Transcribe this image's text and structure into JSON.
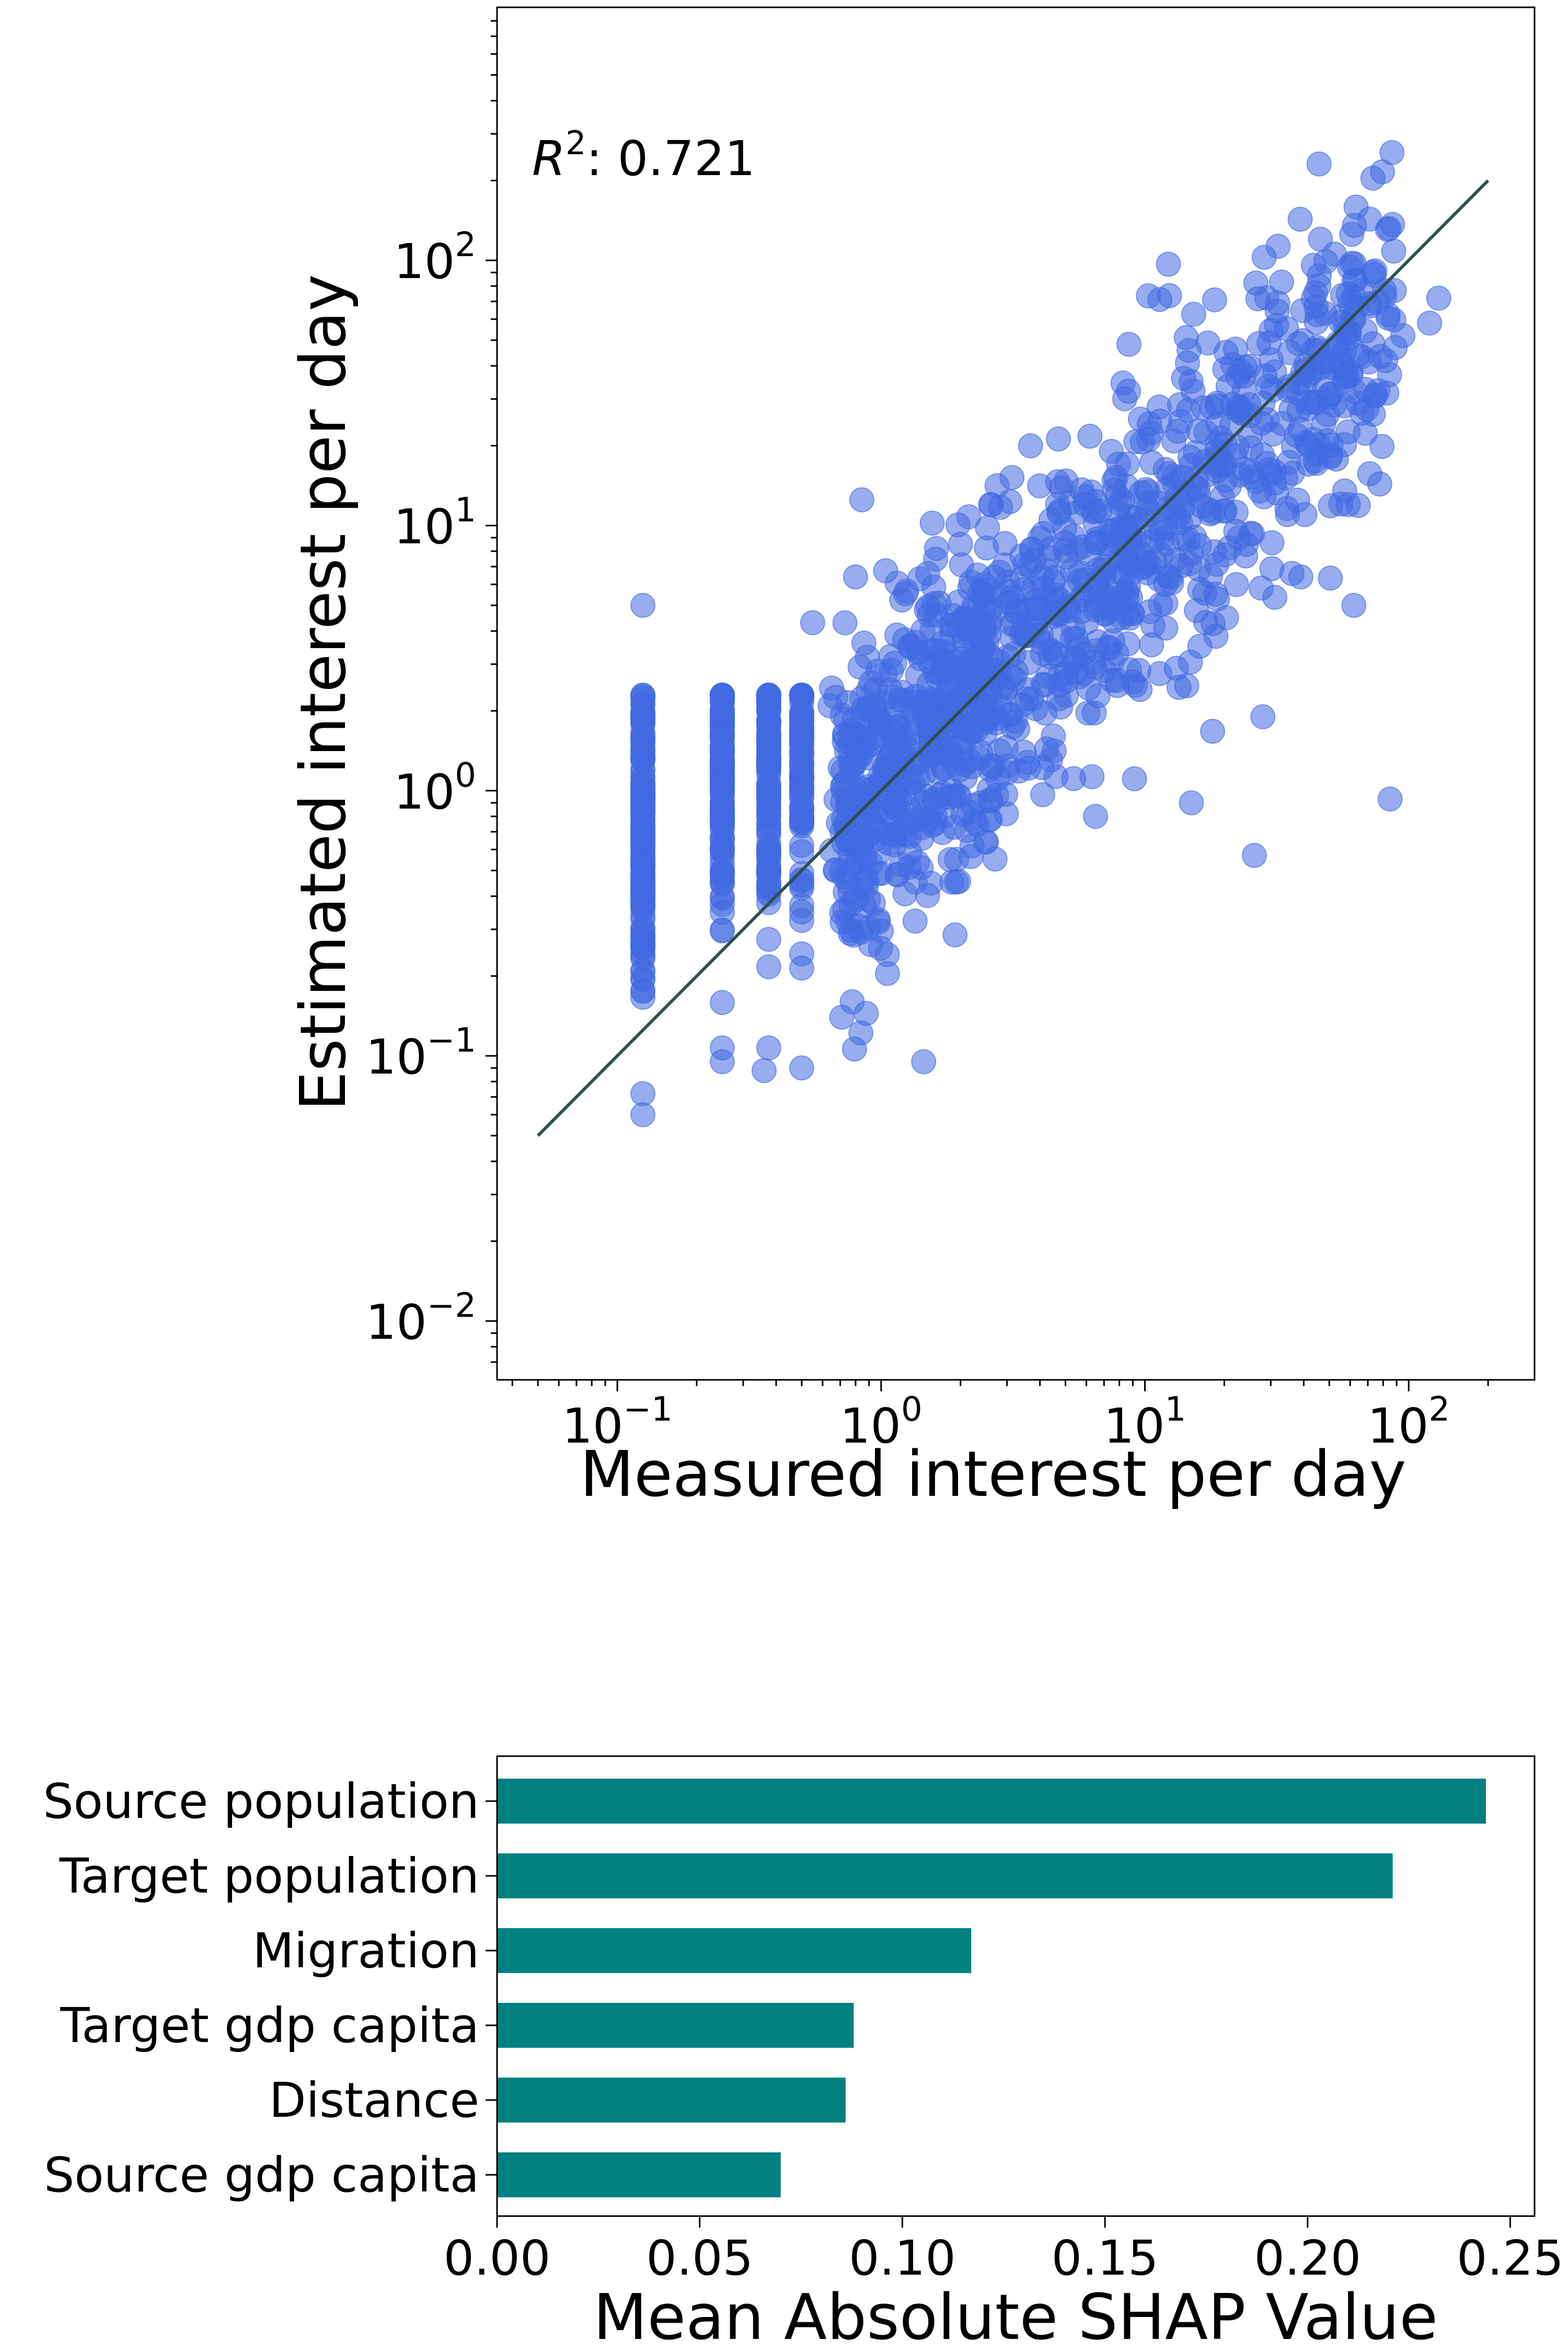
{
  "chart_data": [
    {
      "type": "scatter",
      "xlabel": "Measured interest per day",
      "ylabel": "Estimated interest per day",
      "xscale": "log",
      "yscale": "log",
      "xlim": [
        0.035,
        300
      ],
      "ylim": [
        0.006,
        900
      ],
      "xticks": [
        {
          "base": "10",
          "exp": "−1"
        },
        {
          "base": "10",
          "exp": "0"
        },
        {
          "base": "10",
          "exp": "1"
        },
        {
          "base": "10",
          "exp": "2"
        }
      ],
      "yticks": [
        {
          "base": "10",
          "exp": "−2"
        },
        {
          "base": "10",
          "exp": "−1"
        },
        {
          "base": "10",
          "exp": "0"
        },
        {
          "base": "10",
          "exp": "1"
        },
        {
          "base": "10",
          "exp": "2"
        }
      ],
      "annotation": {
        "symbol": "R",
        "sup": "2",
        "value": ": 0.721"
      },
      "identity_line": {
        "from": 0.05,
        "to": 200,
        "color": "#2f4f4f"
      },
      "marker_color": "#4169e1",
      "marker_alpha": 0.55,
      "grid": false,
      "points": {
        "count": 1700,
        "description": "log-log cloud with discrete measured values at 0.125, 0.25, 0.375, 0.5 forming vertical columns, scattered around the identity line",
        "outliers": [
          [
            0.125,
            5.0
          ],
          [
            0.125,
            0.06
          ],
          [
            0.125,
            0.072
          ],
          [
            0.25,
            0.095
          ],
          [
            0.36,
            0.088
          ],
          [
            0.5,
            0.09
          ],
          [
            1.45,
            0.095
          ],
          [
            0.55,
            4.3
          ],
          [
            0.8,
            6.4
          ],
          [
            1.4,
            6.3
          ],
          [
            2.0,
            8.5
          ],
          [
            2.6,
            12.0
          ],
          [
            6.5,
            0.8
          ],
          [
            15.0,
            0.9
          ],
          [
            26.0,
            0.57
          ],
          [
            85.0,
            0.93
          ],
          [
            62.0,
            5.0
          ],
          [
            39.0,
            6.4
          ],
          [
            14.5,
            41.0
          ],
          [
            74.0,
            88.0
          ],
          [
            130.0,
            72.0
          ],
          [
            120.0,
            58.0
          ],
          [
            95.0,
            52.0
          ],
          [
            28.0,
            1.9
          ]
        ]
      }
    },
    {
      "type": "bar",
      "orientation": "horizontal",
      "categories": [
        "Source population",
        "Target population",
        "Migration",
        "Target gdp capita",
        "Distance",
        "Source gdp capita"
      ],
      "values": [
        0.244,
        0.221,
        0.117,
        0.088,
        0.086,
        0.07
      ],
      "xlabel": "Mean Absolute SHAP Value",
      "xlim": [
        0.0,
        0.256
      ],
      "xticks": [
        "0.00",
        "0.05",
        "0.10",
        "0.15",
        "0.20",
        "0.25"
      ],
      "xtick_values": [
        0.0,
        0.05,
        0.1,
        0.15,
        0.2,
        0.25
      ],
      "color": "#008080",
      "grid": false
    }
  ]
}
